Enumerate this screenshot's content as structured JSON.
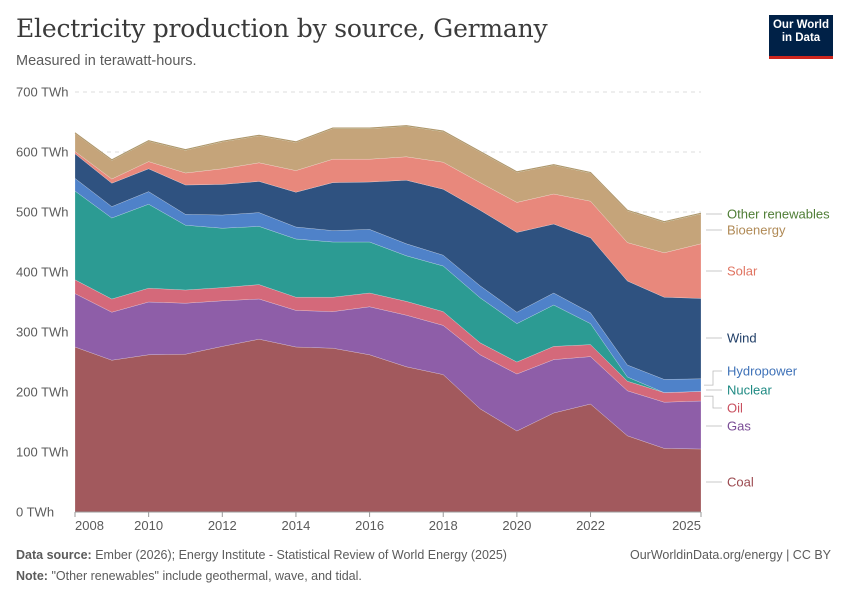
{
  "header": {
    "title": "Electricity production by source, Germany",
    "subtitle": "Measured in terawatt-hours."
  },
  "logo": {
    "line1": "Our World",
    "line2": "in Data"
  },
  "footer": {
    "source_label": "Data source:",
    "source_text": "Ember (2026); Energy Institute - Statistical Review of World Energy (2025)",
    "note_label": "Note:",
    "note_text": "\"Other renewables\" include geothermal, wave, and tidal.",
    "credit": "OurWorldinData.org/energy | CC BY"
  },
  "chart_data": {
    "type": "area",
    "stacked": true,
    "x": [
      2008,
      2009,
      2010,
      2011,
      2012,
      2013,
      2014,
      2015,
      2016,
      2017,
      2018,
      2019,
      2020,
      2021,
      2022,
      2023,
      2024,
      2025
    ],
    "ylim": [
      0,
      700
    ],
    "yticks": [
      0,
      100,
      200,
      300,
      400,
      500,
      600,
      700
    ],
    "ytick_labels": [
      "0 TWh",
      "100 TWh",
      "200 TWh",
      "300 TWh",
      "400 TWh",
      "500 TWh",
      "600 TWh",
      "700 TWh"
    ],
    "xticks": [
      2008,
      2010,
      2012,
      2014,
      2016,
      2018,
      2020,
      2022,
      2025
    ],
    "xtick_labels": [
      "2008",
      "2010",
      "2012",
      "2014",
      "2016",
      "2018",
      "2020",
      "2022",
      "2025"
    ],
    "grid": "horizontal dashed",
    "legend": "right, labels at series ends",
    "series": [
      {
        "name": "Coal",
        "color": "#a2595d",
        "values": [
          275,
          253,
          262,
          263,
          276,
          288,
          275,
          273,
          262,
          242,
          229,
          172,
          135,
          165,
          180,
          127,
          106,
          105
        ]
      },
      {
        "name": "Gas",
        "color": "#8e5ea8",
        "values": [
          89,
          80,
          88,
          85,
          76,
          67,
          61,
          61,
          80,
          86,
          82,
          90,
          95,
          89,
          79,
          75,
          77,
          80
        ]
      },
      {
        "name": "Oil",
        "color": "#d4697a",
        "values": [
          23,
          22,
          23,
          22,
          22,
          24,
          22,
          24,
          23,
          23,
          23,
          20,
          20,
          22,
          20,
          16,
          16,
          16
        ]
      },
      {
        "name": "Nuclear",
        "color": "#2c9b93",
        "values": [
          148,
          135,
          140,
          108,
          99,
          97,
          97,
          92,
          85,
          76,
          76,
          75,
          64,
          69,
          35,
          7,
          0,
          0
        ]
      },
      {
        "name": "Hydropower",
        "color": "#4f82c9",
        "values": [
          21,
          19,
          21,
          18,
          22,
          23,
          20,
          19,
          21,
          20,
          18,
          20,
          19,
          20,
          18,
          20,
          22,
          21
        ]
      },
      {
        "name": "Wind",
        "color": "#2f5280",
        "values": [
          41,
          39,
          38,
          49,
          51,
          52,
          58,
          80,
          79,
          106,
          110,
          126,
          133,
          115,
          125,
          140,
          137,
          134
        ]
      },
      {
        "name": "Solar",
        "color": "#e8887c",
        "values": [
          4,
          7,
          12,
          20,
          26,
          31,
          36,
          39,
          38,
          39,
          45,
          46,
          50,
          50,
          61,
          64,
          74,
          91
        ]
      },
      {
        "name": "Bioenergy",
        "color": "#c5a47a",
        "values": [
          30,
          31,
          34,
          38,
          45,
          45,
          47,
          51,
          51,
          51,
          51,
          51,
          50,
          48,
          47,
          53,
          51,
          50
        ]
      },
      {
        "name": "Other renewables",
        "color": "#5a8a3e",
        "values": [
          1,
          1,
          1,
          1,
          1,
          1,
          1,
          1,
          1,
          1,
          1,
          1,
          1,
          1,
          1,
          1,
          1,
          1
        ]
      }
    ]
  }
}
